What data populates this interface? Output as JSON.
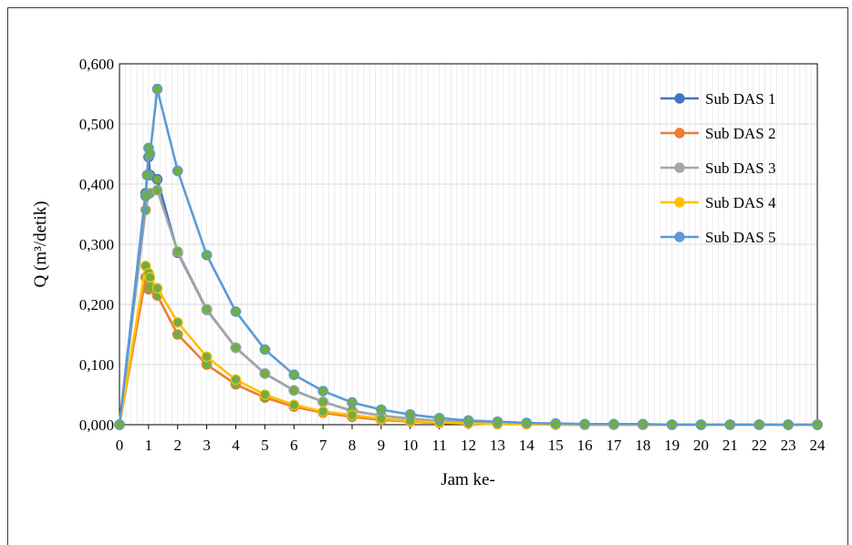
{
  "chart_data": {
    "type": "line",
    "title": "",
    "xlabel": "Jam ke-",
    "ylabel": "Q (m³/detik)",
    "xlim": [
      0,
      24
    ],
    "ylim": [
      0,
      0.6
    ],
    "x_ticks": [
      "0",
      "1",
      "2",
      "3",
      "4",
      "5",
      "6",
      "7",
      "8",
      "9",
      "10",
      "11",
      "12",
      "13",
      "14",
      "15",
      "16",
      "17",
      "18",
      "19",
      "20",
      "21",
      "22",
      "23",
      "24"
    ],
    "y_ticks": [
      "0,000",
      "0,100",
      "0,200",
      "0,300",
      "0,400",
      "0,500",
      "0,600"
    ],
    "grid": true,
    "legend_position": "top-right",
    "marker_fill": "#70ad47",
    "series": [
      {
        "name": "Sub DAS 1",
        "color": "#4472c4",
        "x": [
          0,
          0.9,
          1,
          1.05,
          1.3,
          2,
          3,
          4,
          5,
          6,
          7,
          8,
          9,
          10,
          11,
          12,
          13,
          14,
          15,
          16,
          17,
          18,
          19,
          20,
          21,
          22,
          23,
          24
        ],
        "y": [
          0,
          0.385,
          0.445,
          0.415,
          0.408,
          0.286,
          0.191,
          0.128,
          0.085,
          0.057,
          0.038,
          0.023,
          0.015,
          0.01,
          0.006,
          0.004,
          0.002,
          0.001,
          0.001,
          0,
          0,
          0,
          0,
          0,
          0,
          0,
          0,
          0
        ]
      },
      {
        "name": "Sub DAS 2",
        "color": "#ed7d31",
        "x": [
          0,
          0.9,
          1,
          1.05,
          1.3,
          2,
          3,
          4,
          5,
          6,
          7,
          8,
          9,
          10,
          11,
          12,
          13,
          14,
          15,
          16,
          17,
          18,
          19,
          20,
          21,
          22,
          23,
          24
        ],
        "y": [
          0,
          0.245,
          0.225,
          0.23,
          0.215,
          0.15,
          0.1,
          0.067,
          0.045,
          0.03,
          0.02,
          0.013,
          0.008,
          0.005,
          0.003,
          0.002,
          0.001,
          0.001,
          0,
          0,
          0,
          0,
          0,
          0,
          0,
          0,
          0,
          0
        ]
      },
      {
        "name": "Sub DAS 3",
        "color": "#a5a5a5",
        "x": [
          0,
          0.9,
          1,
          1.05,
          1.3,
          2,
          3,
          4,
          5,
          6,
          7,
          8,
          9,
          10,
          11,
          12,
          13,
          14,
          15,
          16,
          17,
          18,
          19,
          20,
          21,
          22,
          23,
          24
        ],
        "y": [
          0,
          0.357,
          0.384,
          0.385,
          0.39,
          0.288,
          0.192,
          0.128,
          0.085,
          0.057,
          0.038,
          0.023,
          0.015,
          0.01,
          0.006,
          0.004,
          0.002,
          0.001,
          0.001,
          0,
          0,
          0,
          0,
          0,
          0,
          0,
          0,
          0
        ]
      },
      {
        "name": "Sub DAS 4",
        "color": "#ffc000",
        "x": [
          0,
          0.9,
          1,
          1.05,
          1.3,
          2,
          3,
          4,
          5,
          6,
          7,
          8,
          9,
          10,
          11,
          12,
          13,
          14,
          15,
          16,
          17,
          18,
          19,
          20,
          21,
          22,
          23,
          24
        ],
        "y": [
          0,
          0.264,
          0.252,
          0.245,
          0.227,
          0.17,
          0.113,
          0.075,
          0.05,
          0.033,
          0.022,
          0.016,
          0.01,
          0.006,
          0.004,
          0.002,
          0.001,
          0.001,
          0,
          0,
          0,
          0,
          0,
          0,
          0,
          0,
          0,
          0
        ]
      },
      {
        "name": "Sub DAS 5",
        "color": "#5b9bd5",
        "x": [
          0,
          0.9,
          0.95,
          1,
          1.05,
          1.3,
          2,
          3,
          4,
          5,
          6,
          7,
          8,
          9,
          10,
          11,
          12,
          13,
          14,
          15,
          16,
          17,
          18,
          19,
          20,
          21,
          22,
          23,
          24
        ],
        "y": [
          0,
          0.38,
          0.415,
          0.46,
          0.45,
          0.558,
          0.422,
          0.282,
          0.188,
          0.125,
          0.083,
          0.056,
          0.037,
          0.025,
          0.017,
          0.011,
          0.007,
          0.005,
          0.003,
          0.002,
          0.001,
          0.001,
          0.001,
          0,
          0,
          0,
          0,
          0,
          0
        ]
      }
    ]
  }
}
